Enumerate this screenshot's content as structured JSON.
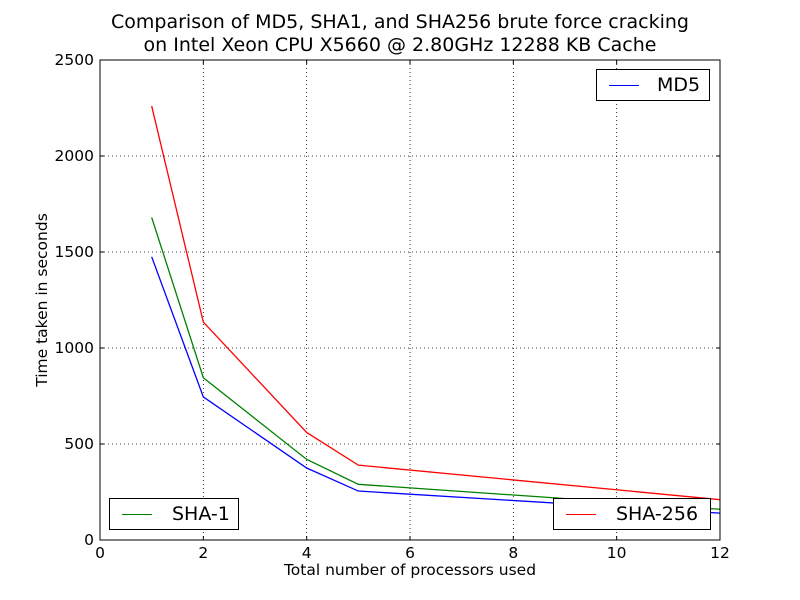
{
  "chart_data": {
    "type": "line",
    "title_line1": "Comparison of MD5, SHA1, and SHA256 brute force cracking",
    "title_line2": "on Intel Xeon CPU X5660 @ 2.80GHz 12288 KB Cache",
    "xlabel": "Total number of processors used",
    "ylabel": "Time taken in seconds",
    "xlim": [
      0,
      12
    ],
    "ylim": [
      0,
      2500
    ],
    "xticks": [
      0,
      2,
      4,
      6,
      8,
      10,
      12
    ],
    "yticks": [
      0,
      500,
      1000,
      1500,
      2000,
      2500
    ],
    "grid": true,
    "series": [
      {
        "name": "MD5",
        "color": "#0000ff",
        "legend": "top-right",
        "x": [
          1,
          2,
          4,
          5,
          12
        ],
        "y": [
          1475,
          745,
          375,
          255,
          140
        ]
      },
      {
        "name": "SHA-1",
        "color": "#008000",
        "legend": "bottom-left",
        "x": [
          1,
          2,
          4,
          5,
          12
        ],
        "y": [
          1680,
          845,
          420,
          290,
          160
        ]
      },
      {
        "name": "SHA-256",
        "color": "#ff0000",
        "legend": "bottom-right",
        "x": [
          1,
          2,
          4,
          5,
          12
        ],
        "y": [
          2260,
          1135,
          560,
          390,
          210
        ]
      }
    ]
  }
}
